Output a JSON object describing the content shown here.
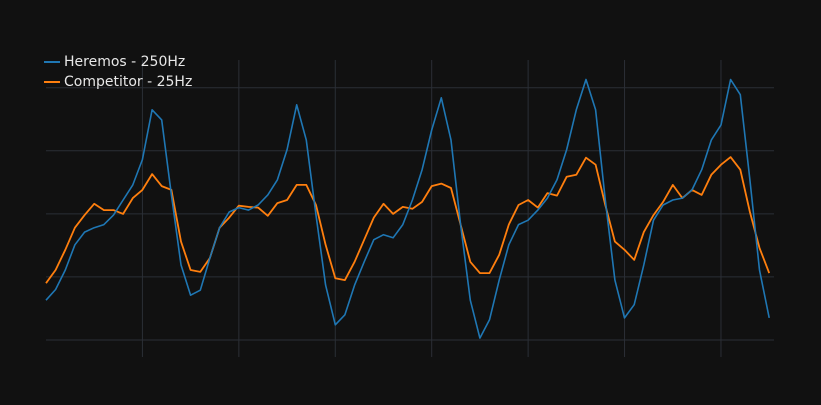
{
  "chart_data": {
    "type": "line",
    "legend": "top-left",
    "grid": true,
    "xlim": [
      0,
      7.55
    ],
    "xticks": [
      1,
      2,
      3,
      4,
      5,
      6,
      7
    ],
    "ylim": [
      -2.27,
      2.44
    ],
    "yticks": [
      -2,
      -1,
      0,
      1,
      2
    ],
    "x": [
      0,
      0.1,
      0.2,
      0.3,
      0.4,
      0.5,
      0.6,
      0.7,
      0.8,
      0.9,
      1,
      1.1,
      1.2,
      1.3,
      1.4,
      1.5,
      1.6,
      1.7,
      1.8,
      1.9,
      2,
      2.1,
      2.2,
      2.3,
      2.4,
      2.5,
      2.6,
      2.7,
      2.8,
      2.9,
      3,
      3.1,
      3.2,
      3.3,
      3.4,
      3.5,
      3.6,
      3.7,
      3.8,
      3.9,
      4,
      4.1,
      4.2,
      4.3,
      4.4,
      4.5,
      4.6,
      4.7,
      4.8,
      4.9,
      5,
      5.1,
      5.2,
      5.3,
      5.4,
      5.5,
      5.6,
      5.7,
      5.8,
      5.9,
      6,
      6.1,
      6.2,
      6.3,
      6.4,
      6.5,
      6.6,
      6.7,
      6.8,
      6.9,
      7,
      7.1,
      7.2,
      7.3,
      7.4,
      7.5
    ],
    "series": [
      {
        "name": "Heremos - 250Hz",
        "color": "#1f77b4",
        "values": [
          -1.37,
          -1.2,
          -0.89,
          -0.49,
          -0.29,
          -0.22,
          -0.17,
          -0.02,
          0.22,
          0.46,
          0.86,
          1.65,
          1.49,
          0.3,
          -0.81,
          -1.29,
          -1.21,
          -0.7,
          -0.22,
          0.03,
          0.1,
          0.06,
          0.14,
          0.3,
          0.54,
          1.02,
          1.73,
          1.17,
          -0.02,
          -1.13,
          -1.76,
          -1.6,
          -1.13,
          -0.76,
          -0.41,
          -0.33,
          -0.38,
          -0.17,
          0.22,
          0.7,
          1.33,
          1.84,
          1.17,
          -0.17,
          -1.37,
          -1.97,
          -1.68,
          -1.05,
          -0.49,
          -0.17,
          -0.1,
          0.06,
          0.25,
          0.54,
          1.02,
          1.65,
          2.13,
          1.65,
          0.22,
          -1.05,
          -1.65,
          -1.44,
          -0.81,
          -0.1,
          0.14,
          0.22,
          0.25,
          0.38,
          0.7,
          1.17,
          1.41,
          2.13,
          1.89,
          0.54,
          -0.89,
          -1.65
        ]
      },
      {
        "name": "Competitor - 25Hz",
        "color": "#ff7f0e",
        "values": [
          -1.1,
          -0.89,
          -0.57,
          -0.22,
          -0.02,
          0.16,
          0.06,
          0.06,
          0,
          0.25,
          0.38,
          0.63,
          0.44,
          0.38,
          -0.44,
          -0.89,
          -0.92,
          -0.7,
          -0.22,
          -0.06,
          0.13,
          0.11,
          0.1,
          -0.03,
          0.17,
          0.22,
          0.46,
          0.46,
          0.14,
          -0.49,
          -1.02,
          -1.05,
          -0.76,
          -0.41,
          -0.06,
          0.16,
          0,
          0.11,
          0.08,
          0.19,
          0.44,
          0.48,
          0.41,
          -0.17,
          -0.76,
          -0.94,
          -0.94,
          -0.65,
          -0.17,
          0.14,
          0.22,
          0.1,
          0.33,
          0.29,
          0.59,
          0.62,
          0.89,
          0.78,
          0.14,
          -0.44,
          -0.57,
          -0.73,
          -0.29,
          -0.02,
          0.19,
          0.46,
          0.25,
          0.38,
          0.3,
          0.62,
          0.78,
          0.9,
          0.7,
          0.03,
          -0.54,
          -0.94
        ]
      }
    ]
  }
}
